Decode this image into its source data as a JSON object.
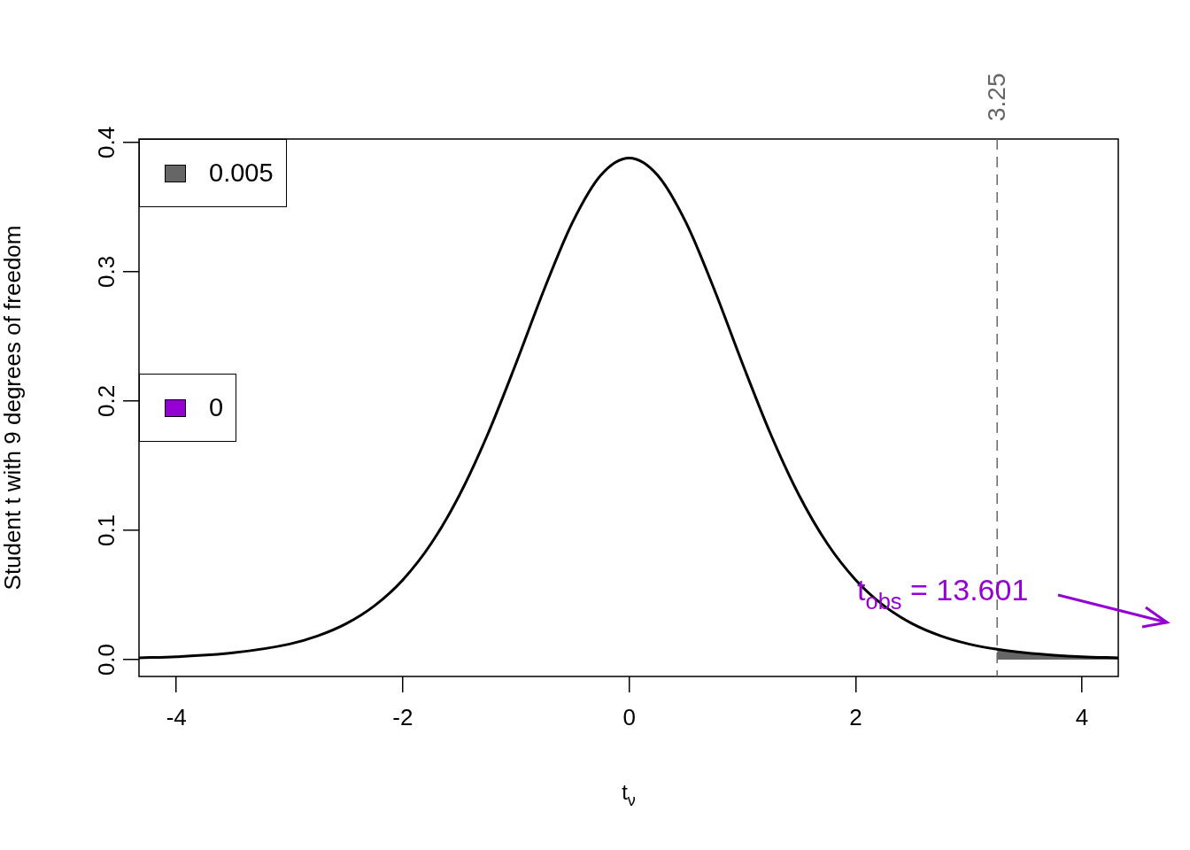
{
  "chart_data": {
    "type": "line",
    "xlabel": "t$_{ν}$",
    "ylabel": "Student t with 9 degrees of freedom",
    "xlim": [
      -4.33,
      4.32
    ],
    "ylim": [
      -0.013,
      0.4027
    ],
    "xticks": [
      -4,
      -2,
      0,
      2,
      4
    ],
    "yticks": [
      {
        "value": 0,
        "label": "0.0"
      },
      {
        "value": 0.1,
        "label": "0.1"
      },
      {
        "value": 0.2,
        "label": "0.2"
      },
      {
        "value": 0.3,
        "label": "0.3"
      },
      {
        "value": 0.4,
        "label": "0.4"
      }
    ],
    "grid": false,
    "legend": "left",
    "marker": "none",
    "line_style": "solid",
    "series": [
      {
        "color": "#000000",
        "x": [
          -4.33,
          -4,
          -3.5,
          -3,
          -2.75,
          -2.5,
          -2.25,
          -2,
          -1.75,
          -1.5,
          -1.25,
          -1,
          -0.75,
          -0.5,
          -0.25,
          0,
          0.25,
          0.5,
          0.75,
          1,
          1.25,
          1.5,
          1.75,
          2,
          2.25,
          2.5,
          2.75,
          3,
          3.25,
          3.5,
          3.75,
          4,
          4.32
        ],
        "values": [
          0.0014,
          0.0023,
          0.0053,
          0.0121,
          0.0184,
          0.0278,
          0.0417,
          0.0617,
          0.0897,
          0.1272,
          0.1743,
          0.2291,
          0.2866,
          0.3384,
          0.3748,
          0.388,
          0.3748,
          0.3384,
          0.2866,
          0.2291,
          0.1743,
          0.1272,
          0.0897,
          0.0617,
          0.0417,
          0.0278,
          0.0184,
          0.0121,
          0.008,
          0.0053,
          0.0035,
          0.0023,
          0.0014
        ]
      },
      {
        "name": "0.005",
        "type": "area",
        "color": "#666666",
        "x": [
          3.25,
          3.5,
          3.75,
          4,
          4.32
        ],
        "values": [
          0.008,
          0.0053,
          0.0035,
          0.0023,
          0.0014
        ]
      },
      {
        "name": "0",
        "type": "area",
        "color": "#9400d3"
      }
    ],
    "ref_lines": [
      {
        "axis": "x",
        "value": 3.25,
        "label": "3.25",
        "color": "#666666",
        "line_style": "dashed"
      }
    ],
    "annotations": [
      "t$_{obs}$ = 13.601"
    ]
  }
}
